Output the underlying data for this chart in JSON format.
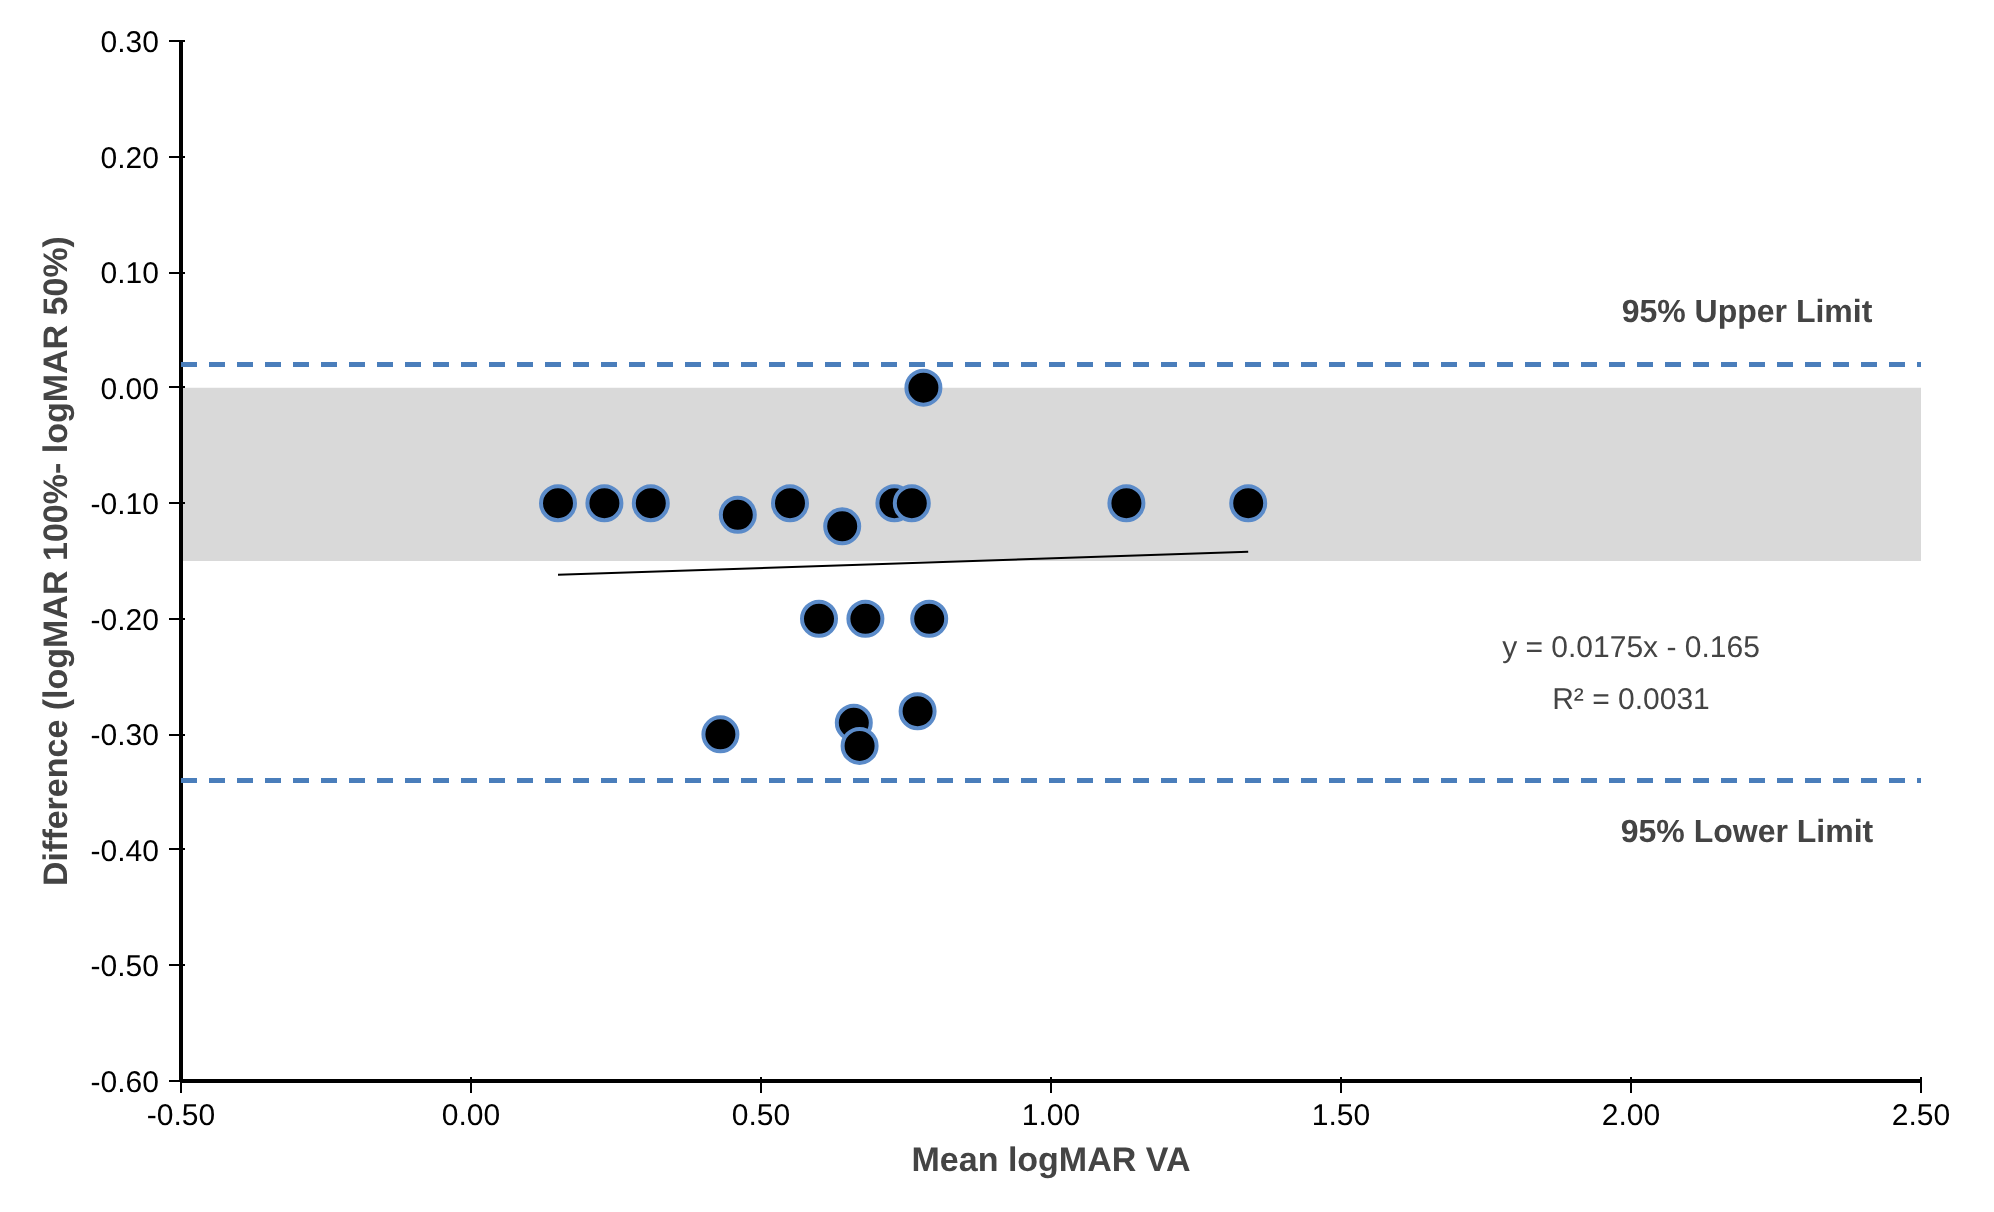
{
  "chart_data": {
    "type": "scatter",
    "xlabel": "Mean logMAR VA",
    "ylabel": "Difference (logMAR 100%- logMAR 50%)",
    "xlim": [
      -0.5,
      2.5
    ],
    "xticks": [
      {
        "value": -0.5,
        "label": "-0.50"
      },
      {
        "value": 0,
        "label": "0.00"
      },
      {
        "value": 0.5,
        "label": "0.50"
      },
      {
        "value": 1,
        "label": "1.00"
      },
      {
        "value": 1.5,
        "label": "1.50"
      },
      {
        "value": 2,
        "label": "2.00"
      },
      {
        "value": 2.5,
        "label": "2.50"
      }
    ],
    "ylim": [
      -0.6,
      0.3
    ],
    "yticks": [
      {
        "value": -0.6,
        "label": "-0.60"
      },
      {
        "value": -0.5,
        "label": "-0.50"
      },
      {
        "value": -0.4,
        "label": "-0.40"
      },
      {
        "value": -0.3,
        "label": "-0.30"
      },
      {
        "value": -0.2,
        "label": "-0.20"
      },
      {
        "value": -0.1,
        "label": "-0.10"
      },
      {
        "value": 0,
        "label": "0.00"
      },
      {
        "value": 0.1,
        "label": "0.10"
      },
      {
        "value": 0.2,
        "label": "0.20"
      },
      {
        "value": 0.3,
        "label": "0.30"
      }
    ],
    "grid": false,
    "series": [
      {
        "color": "#000000",
        "marker": "circle",
        "x": [
          0.15,
          0.23,
          0.31,
          0.46,
          0.55,
          0.64,
          0.73,
          0.76,
          1.13,
          1.34,
          0.78,
          0.6,
          0.68,
          0.79,
          0.77,
          0.66,
          0.67,
          0.43
        ],
        "values": [
          -0.1,
          -0.1,
          -0.1,
          -0.11,
          -0.1,
          -0.12,
          -0.1,
          -0.1,
          -0.1,
          -0.1,
          0.0,
          -0.2,
          -0.2,
          -0.2,
          -0.28,
          -0.29,
          -0.31,
          -0.3
        ]
      },
      {
        "type": "line",
        "color": "#000000",
        "marker": "none",
        "x": [
          0.15,
          1.34
        ],
        "values": [
          -0.162,
          -0.142
        ]
      }
    ],
    "ref_lines": [
      {
        "axis": "y",
        "value": 0.02,
        "label": "95% Upper Limit",
        "color": "#4a7ebb",
        "line_style": "dashed"
      },
      {
        "axis": "y",
        "value": -0.34,
        "label": "95% Lower Limit",
        "color": "#4a7ebb",
        "line_style": "dashed"
      }
    ],
    "bands": [
      {
        "axis": "y",
        "from": -0.15,
        "to": 0,
        "color": "#d9d9d9"
      }
    ],
    "annotations": [
      "y = 0.0175x - 0.165",
      "R² = 0.0031"
    ]
  }
}
